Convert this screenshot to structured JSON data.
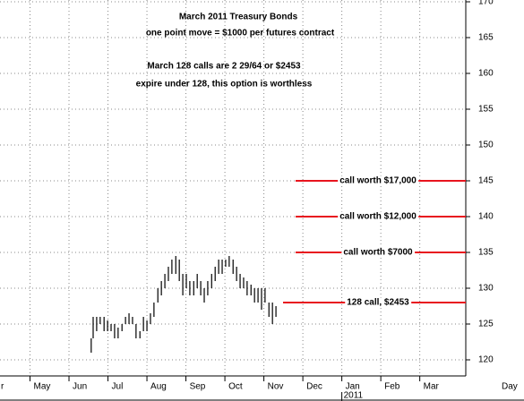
{
  "chart_data": {
    "type": "ohlc",
    "title": "March 2011 Treasury Bonds",
    "subtitle": "one point move = $1000 per futures contract",
    "headline": "March 128 calls are 2 29/64 or $2453",
    "subheadline": "expire under 128, this option is worthless",
    "title_color": "#1a1aa6",
    "headline_color": "#e8141e",
    "x_label": "Day",
    "year_label": {
      "value": 9,
      "label": "2011"
    },
    "xlim": [
      0.23,
      12.18
    ],
    "xticks": [
      {
        "value": 0,
        "label": "r"
      },
      {
        "value": 1,
        "label": "May"
      },
      {
        "value": 2,
        "label": "Jun"
      },
      {
        "value": 3,
        "label": "Jul"
      },
      {
        "value": 4,
        "label": "Aug"
      },
      {
        "value": 5,
        "label": "Sep"
      },
      {
        "value": 6,
        "label": "Oct"
      },
      {
        "value": 7,
        "label": "Nov"
      },
      {
        "value": 8,
        "label": "Dec"
      },
      {
        "value": 9,
        "label": "Jan"
      },
      {
        "value": 10,
        "label": "Feb"
      },
      {
        "value": 11,
        "label": "Mar"
      }
    ],
    "ylim": [
      117.75,
      170.25
    ],
    "yticks": [
      120,
      125,
      130,
      135,
      140,
      145,
      150,
      155,
      160,
      165,
      170
    ],
    "grid": true,
    "series": [
      {
        "color": "#000000",
        "x": [
          2.57,
          2.62,
          2.71,
          2.8,
          2.9,
          2.99,
          3.08,
          3.17,
          3.26,
          3.36,
          3.45,
          3.54,
          3.63,
          3.72,
          3.82,
          3.91,
          4.0,
          4.09,
          4.18,
          4.28,
          4.37,
          4.46,
          4.55,
          4.64,
          4.74,
          4.83,
          4.92,
          5.01,
          5.1,
          5.2,
          5.29,
          5.38,
          5.47,
          5.56,
          5.66,
          5.75,
          5.84,
          5.93,
          6.02,
          6.11,
          6.21,
          6.3,
          6.39,
          6.48,
          6.57,
          6.67,
          6.76,
          6.85,
          6.94,
          7.03,
          7.13,
          7.22,
          7.31
        ],
        "high": [
          123,
          126,
          126,
          126,
          126,
          125.5,
          125,
          125,
          124.5,
          125,
          126,
          126.5,
          126,
          125,
          124,
          126,
          125.5,
          126.5,
          128,
          130,
          131,
          132,
          133,
          134,
          134.5,
          134,
          132,
          132,
          131,
          131,
          132,
          131,
          130,
          131,
          132,
          133,
          134,
          134,
          134,
          134.5,
          134,
          133,
          132,
          131.5,
          131,
          130.5,
          130,
          130,
          130,
          130,
          128,
          128,
          127.5
        ],
        "low": [
          121,
          123,
          124,
          125,
          124,
          124,
          124,
          123,
          123,
          124,
          125,
          125,
          125,
          123,
          123,
          124,
          124,
          125,
          126,
          128,
          129,
          130,
          131,
          132,
          132,
          131,
          129,
          130,
          129,
          129,
          130,
          129,
          128,
          129,
          130,
          131,
          132,
          132,
          133,
          133,
          132,
          131,
          130,
          130,
          129,
          129,
          128,
          128,
          127,
          128,
          126,
          125,
          126
        ]
      }
    ],
    "annotations": [
      {
        "text": "call worth $17,000",
        "y": 145,
        "color": "#e8141e"
      },
      {
        "text": "call worth $12,000",
        "y": 140,
        "color": "#e8141e"
      },
      {
        "text": "call worth $7000",
        "y": 135,
        "color": "#e8141e"
      },
      {
        "text": "128 call, $2453",
        "y": 128,
        "color": "#e8141e"
      }
    ]
  }
}
